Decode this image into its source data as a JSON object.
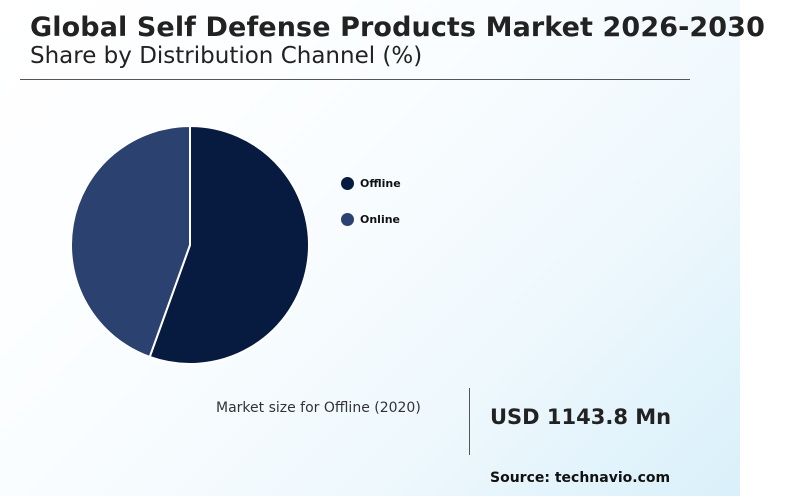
{
  "header": {
    "title": "Global Self Defense Products Market 2026-2030",
    "subtitle": "Share by Distribution Channel (%)"
  },
  "chart_data": {
    "type": "pie",
    "title": "Global Self Defense Products Market 2026-2030",
    "subtitle": "Share by Distribution Channel (%)",
    "categories": [
      "Offline",
      "Online"
    ],
    "values": [
      55.5,
      44.5
    ],
    "colors": [
      "#071a40",
      "#2b4170"
    ],
    "legend_position": "right"
  },
  "legend": {
    "items": [
      {
        "label": "Offline",
        "color": "#071a40"
      },
      {
        "label": "Online",
        "color": "#2b4170"
      }
    ]
  },
  "metric": {
    "label": "Market size for Offline (2020)",
    "value": "USD 1143.8 Mn"
  },
  "footer": {
    "source": "Source: technavio.com"
  }
}
